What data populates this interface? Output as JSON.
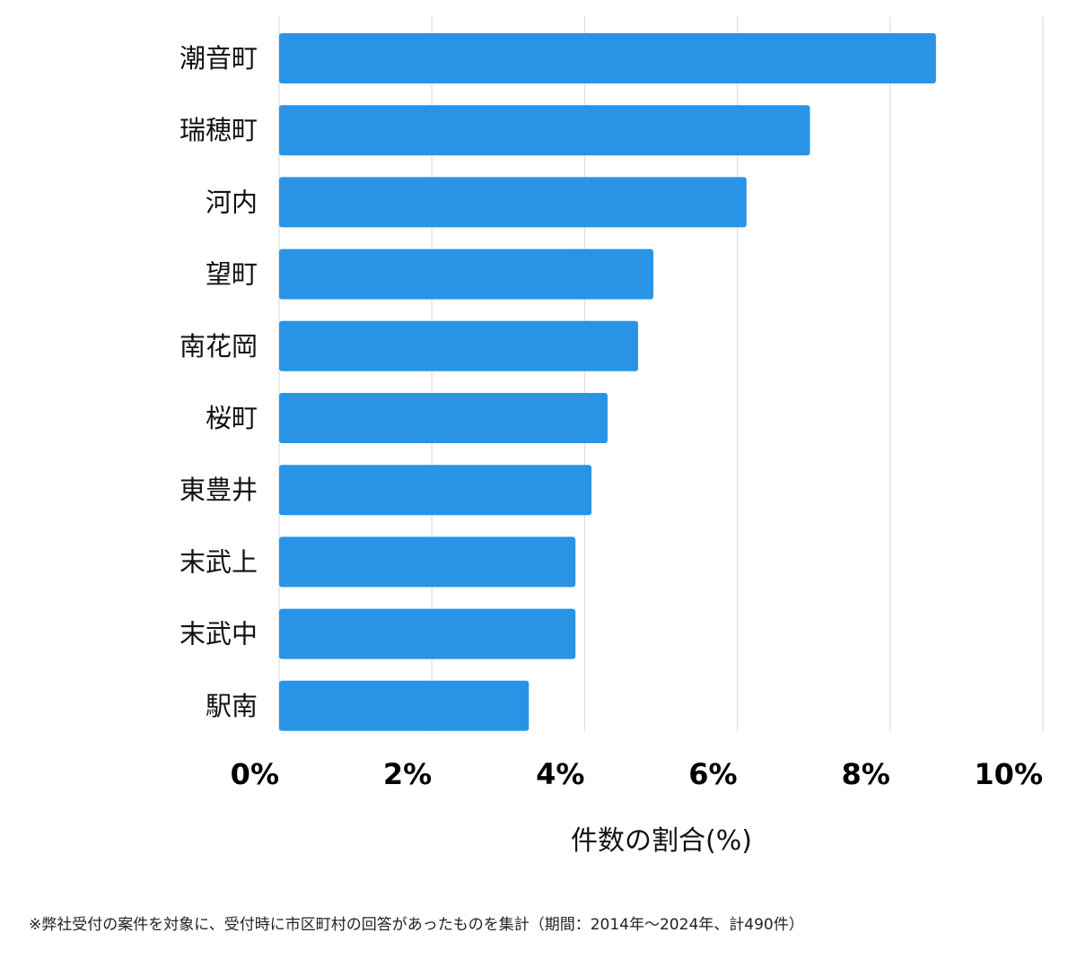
{
  "chart_data": {
    "type": "bar",
    "orientation": "horizontal",
    "categories": [
      "潮音町",
      "瑞穂町",
      "河内",
      "望町",
      "南花岡",
      "桜町",
      "東豊井",
      "末武上",
      "末武中",
      "駅南"
    ],
    "values": [
      8.6,
      6.95,
      6.12,
      4.9,
      4.7,
      4.3,
      4.09,
      3.88,
      3.88,
      3.27
    ],
    "xlabel": "件数の割合(%)",
    "xlim": [
      0,
      10
    ],
    "xticks": [
      0,
      2,
      4,
      6,
      8,
      10
    ],
    "xtick_labels": [
      "0%",
      "2%",
      "4%",
      "6%",
      "8%",
      "10%"
    ],
    "grid": true,
    "bar_color": "#2994e6",
    "grid_color": "#dddddd"
  },
  "footnote": "※弊社受付の案件を対象に、受付時に市区町村の回答があったものを集計（期間：2014年～2024年、計490件）"
}
